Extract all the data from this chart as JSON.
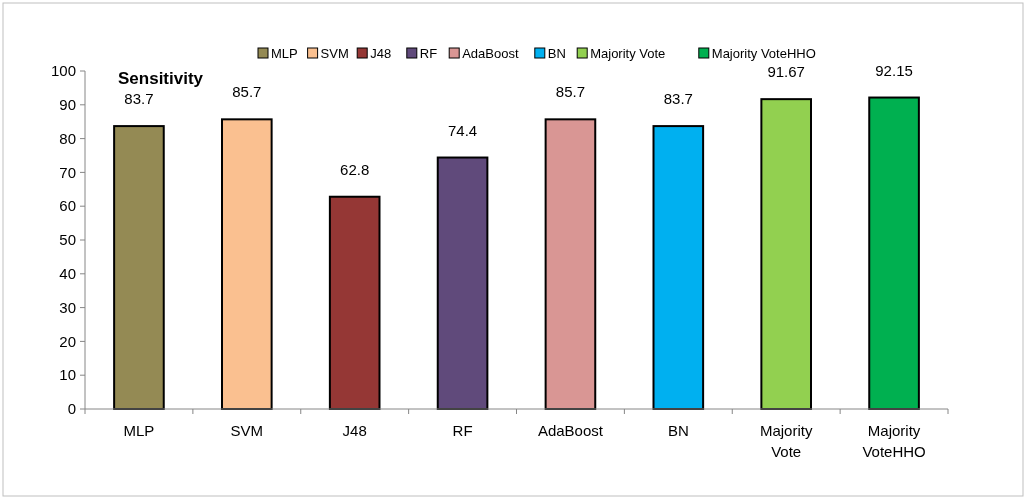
{
  "chart_data": {
    "type": "bar",
    "title": "Sensitivity",
    "categories": [
      "MLP",
      "SVM",
      "J48",
      "RF",
      "AdaBoost",
      "BN",
      "Majority Vote",
      "Majority VoteHHO"
    ],
    "series": [
      {
        "name": "MLP",
        "color": "#948a54",
        "values": [
          83.7,
          null,
          null,
          null,
          null,
          null,
          null,
          null
        ]
      },
      {
        "name": "SVM",
        "color": "#fac090",
        "values": [
          null,
          85.7,
          null,
          null,
          null,
          null,
          null,
          null
        ]
      },
      {
        "name": "J48",
        "color": "#953735",
        "values": [
          null,
          null,
          62.8,
          null,
          null,
          null,
          null,
          null
        ]
      },
      {
        "name": "RF",
        "color": "#604a7b",
        "values": [
          null,
          null,
          null,
          74.4,
          null,
          null,
          null,
          null
        ]
      },
      {
        "name": "AdaBoost",
        "color": "#d99694",
        "values": [
          null,
          null,
          null,
          null,
          85.7,
          null,
          null,
          null
        ]
      },
      {
        "name": "BN",
        "color": "#00b0f0",
        "values": [
          null,
          null,
          null,
          null,
          null,
          83.7,
          null,
          null
        ]
      },
      {
        "name": "Majority Vote",
        "color": "#92d050",
        "values": [
          null,
          null,
          null,
          null,
          null,
          null,
          91.67,
          null
        ]
      },
      {
        "name": "Majority VoteHHO",
        "color": "#00b050",
        "values": [
          null,
          null,
          null,
          null,
          null,
          null,
          null,
          92.15
        ]
      }
    ],
    "ylim": [
      0,
      100
    ],
    "yticks": [
      0,
      10,
      20,
      30,
      40,
      50,
      60,
      70,
      80,
      90,
      100
    ],
    "data_labels": true,
    "legend": "top",
    "grid": false
  }
}
